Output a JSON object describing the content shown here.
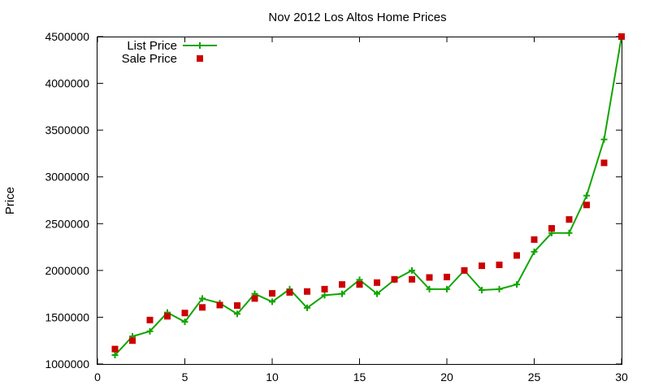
{
  "chart_data": {
    "type": "line",
    "title": "Nov 2012 Los Altos Home Prices",
    "xlabel": "",
    "ylabel": "Price",
    "xlim": [
      0,
      30
    ],
    "ylim": [
      1000000,
      4500000
    ],
    "x_ticks": [
      0,
      5,
      10,
      15,
      20,
      25,
      30
    ],
    "y_ticks": [
      1000000,
      1500000,
      2000000,
      2500000,
      3000000,
      3500000,
      4000000,
      4500000
    ],
    "grid": false,
    "legend_position": "top-left",
    "series": [
      {
        "name": "List Price",
        "style": "line+plus",
        "color": "#11a500",
        "x": [
          1,
          2,
          3,
          4,
          5,
          6,
          7,
          8,
          9,
          10,
          11,
          12,
          13,
          14,
          15,
          16,
          17,
          18,
          19,
          20,
          21,
          22,
          23,
          24,
          25,
          26,
          27,
          28,
          29,
          30
        ],
        "y": [
          1095000,
          1295000,
          1350000,
          1550000,
          1450000,
          1700000,
          1650000,
          1535000,
          1750000,
          1665000,
          1800000,
          1600000,
          1735000,
          1750000,
          1900000,
          1750000,
          1900000,
          2000000,
          1800000,
          1800000,
          2000000,
          1790000,
          1800000,
          1850000,
          2200000,
          2400000,
          2400000,
          2800000,
          3400000,
          4500000
        ]
      },
      {
        "name": "Sale Price",
        "style": "points",
        "color": "#cc0000",
        "x": [
          1,
          2,
          3,
          4,
          5,
          6,
          7,
          8,
          9,
          10,
          11,
          12,
          13,
          14,
          15,
          16,
          17,
          18,
          19,
          20,
          21,
          22,
          23,
          24,
          25,
          26,
          27,
          28,
          29,
          30
        ],
        "y": [
          1160000,
          1250000,
          1470000,
          1510000,
          1545000,
          1605000,
          1630000,
          1625000,
          1700000,
          1755000,
          1765000,
          1775000,
          1800000,
          1850000,
          1850000,
          1870000,
          1905000,
          1905000,
          1925000,
          1930000,
          2000000,
          2050000,
          2060000,
          2160000,
          2330000,
          2450000,
          2545000,
          2700000,
          3150000,
          4500000
        ]
      }
    ]
  }
}
